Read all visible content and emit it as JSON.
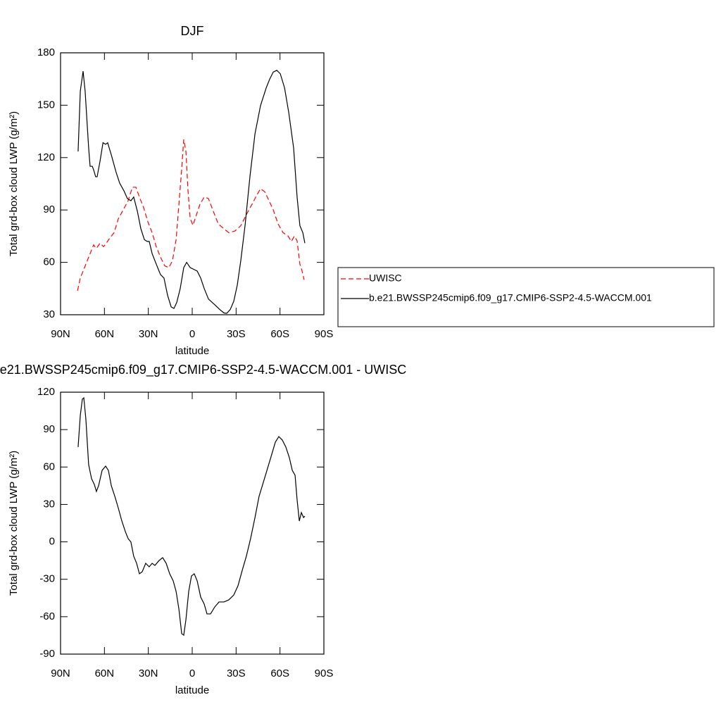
{
  "chart_data": [
    {
      "type": "line",
      "title": "DJF",
      "xlabel": "latitude",
      "ylabel": "Total grd-box cloud LWP (g/m²)",
      "xlim": [
        90,
        -90
      ],
      "ylim": [
        30,
        180
      ],
      "xticks": [
        {
          "value": 90,
          "label": "90N"
        },
        {
          "value": 60,
          "label": "60N"
        },
        {
          "value": 30,
          "label": "30N"
        },
        0,
        {
          "value": -30,
          "label": "30S"
        },
        {
          "value": -60,
          "label": "60S"
        },
        {
          "value": -90,
          "label": "90S"
        }
      ],
      "yticks": [
        30,
        60,
        90,
        120,
        150,
        180
      ],
      "series": [
        {
          "name": "UWISC",
          "color": "#ff0000",
          "dashed": true,
          "x": [
            78.4,
            76.5,
            74.6,
            71.7,
            69.8,
            67.4,
            65.5,
            63,
            60.6,
            58.7,
            56.3,
            53.4,
            50.5,
            47.2,
            43.8,
            40.9,
            38.5,
            36.1,
            33.2,
            30.3,
            27.4,
            24.6,
            21.7,
            18.8,
            15.9,
            13.5,
            11,
            8.7,
            7.2,
            5.8,
            4.3,
            2.9,
            1.4,
            -0.5,
            -2.9,
            -5.3,
            -8.2,
            -11.1,
            -14.4,
            -17.8,
            -21.7,
            -25,
            -29.3,
            -33.2,
            -37,
            -40.9,
            -43.8,
            -46.7,
            -49.6,
            -52.5,
            -55.4,
            -58.7,
            -62.1,
            -65.4,
            -67.8,
            -69.8,
            -71.7,
            -73.6,
            -75.1,
            -76.5
          ],
          "values": [
            43.7,
            51,
            55,
            61,
            65,
            70,
            68,
            71,
            69,
            71,
            74,
            77,
            85,
            90,
            95.3,
            103,
            103,
            97.4,
            91.3,
            83.2,
            77,
            69,
            63,
            58,
            57,
            61,
            73,
            97.4,
            113.5,
            130.4,
            123.5,
            101.4,
            85.3,
            81.2,
            87.3,
            93.3,
            97.4,
            96.5,
            89.3,
            82,
            79.2,
            77,
            78,
            81,
            87.3,
            93.3,
            98,
            102.2,
            100.4,
            95.3,
            90,
            82,
            77,
            75.2,
            72,
            75,
            72.3,
            59,
            55,
            50
          ]
        },
        {
          "name": "b.e21.BWSSP245cmip6.f09_g17.CMIP6-SSP2-4.5-WACCM.001",
          "color": "#000000",
          "dashed": false,
          "x": [
            78,
            76.5,
            74.6,
            73.2,
            70.8,
            69.8,
            68.3,
            67.4,
            66,
            65,
            63,
            61,
            59.2,
            57.8,
            55.3,
            52,
            49.6,
            46.7,
            44.3,
            41.9,
            40,
            37.5,
            35.1,
            32.7,
            30.8,
            29.4,
            27.4,
            24.6,
            21.7,
            19.3,
            16.8,
            14.4,
            12.5,
            10.6,
            8.2,
            5.8,
            3.8,
            1.4,
            -1,
            -3.4,
            -5.8,
            -8.2,
            -11.1,
            -15.4,
            -18.8,
            -21.7,
            -23.6,
            -26,
            -28.4,
            -30.8,
            -33.2,
            -36.1,
            -39.5,
            -42.9,
            -46.7,
            -50.6,
            -53,
            -55.4,
            -57.8,
            -60.2,
            -63.1,
            -66,
            -69.3,
            -71.7,
            -73.6,
            -75.6,
            -77
          ],
          "values": [
            123.5,
            158,
            169.5,
            158,
            125.6,
            115,
            115,
            113,
            109,
            109,
            118,
            128.5,
            127.6,
            128.5,
            121.5,
            111.5,
            105.4,
            101,
            96.5,
            95.3,
            97.4,
            89.3,
            79.2,
            73,
            72,
            72,
            65,
            59,
            53,
            51,
            41,
            34.5,
            33.6,
            37,
            45,
            57,
            60,
            57,
            56,
            55,
            51,
            45,
            39,
            35.7,
            33,
            31,
            30.8,
            33,
            37.7,
            47,
            61,
            81,
            109.4,
            133.6,
            149.8,
            160,
            165,
            169,
            170,
            168,
            160,
            145.7,
            125.6,
            97.3,
            81,
            77,
            71
          ]
        }
      ]
    },
    {
      "type": "line",
      "title": "b.e21.BWSSP245cmip6.f09_g17.CMIP6-SSP2-4.5-WACCM.001 - UWISC",
      "xlabel": "latitude",
      "ylabel": "Total grd-box cloud LWP (g/m²)",
      "xlim": [
        90,
        -90
      ],
      "ylim": [
        -90,
        120
      ],
      "xticks": [
        {
          "value": 90,
          "label": "90N"
        },
        {
          "value": 60,
          "label": "60N"
        },
        {
          "value": 30,
          "label": "30N"
        },
        0,
        {
          "value": -30,
          "label": "30S"
        },
        {
          "value": -60,
          "label": "60S"
        },
        {
          "value": -90,
          "label": "90S"
        }
      ],
      "yticks": [
        -90,
        -60,
        -30,
        0,
        30,
        60,
        90,
        120
      ],
      "series": [
        {
          "color": "#000000",
          "dashed": false,
          "x": [
            78,
            76.5,
            75.1,
            74.1,
            72.7,
            70.8,
            68.8,
            66.9,
            65.5,
            64,
            61.6,
            59.2,
            57.3,
            55.3,
            52.9,
            50.5,
            48.1,
            45.7,
            43.8,
            41.9,
            40,
            38,
            36.1,
            34.2,
            31.8,
            29.4,
            27.4,
            25.5,
            22.6,
            20.2,
            17.8,
            15.4,
            13,
            11,
            9.1,
            7.2,
            5.8,
            4.3,
            2.4,
            0.5,
            -1.4,
            -3.4,
            -5.8,
            -8.2,
            -10.1,
            -12.5,
            -15.4,
            -18.3,
            -21.7,
            -25,
            -28.4,
            -31.3,
            -34.2,
            -37,
            -39.9,
            -42.9,
            -45.7,
            -48.6,
            -51.5,
            -54.4,
            -56.8,
            -59.2,
            -61.6,
            -64,
            -66.4,
            -68.4,
            -70.3,
            -71.7,
            -73.2,
            -74.6,
            -76.1,
            -77
          ],
          "values": [
            76,
            101.4,
            114.4,
            115.5,
            98.5,
            61.9,
            50.6,
            46,
            40.4,
            45,
            57.3,
            60.7,
            57.3,
            45,
            36.5,
            27,
            16.7,
            8.2,
            2.6,
            -0.2,
            -11.5,
            -17.2,
            -25.6,
            -24,
            -17.2,
            -20,
            -17.2,
            -18.9,
            -14.9,
            -12.7,
            -17.2,
            -25.6,
            -31.3,
            -39.8,
            -53.9,
            -73.6,
            -74.8,
            -62.4,
            -39.8,
            -27.3,
            -25.6,
            -31.3,
            -44.3,
            -49.9,
            -57.8,
            -57.8,
            -52.2,
            -48.2,
            -48.2,
            -46.5,
            -42.6,
            -35.2,
            -22.8,
            -11.5,
            2.6,
            19.5,
            36.5,
            47.7,
            59,
            70.3,
            79.9,
            84.4,
            81.6,
            76,
            67.5,
            57.3,
            53.4,
            33.6,
            16.7,
            23.5,
            19.5,
            20.6
          ]
        }
      ]
    }
  ]
}
